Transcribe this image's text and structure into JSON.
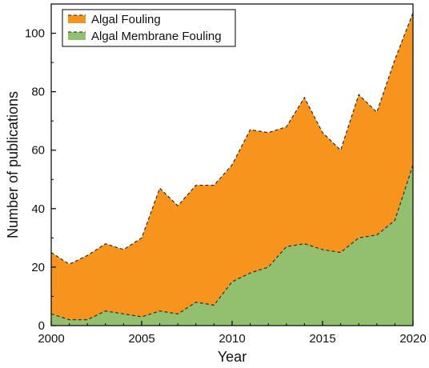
{
  "chart_data": {
    "type": "area",
    "xlabel": "Year",
    "ylabel": "Number of publications",
    "xlim": [
      2000,
      2020
    ],
    "ylim": [
      0,
      110
    ],
    "x_ticks": [
      2000,
      2005,
      2010,
      2015,
      2020
    ],
    "y_ticks": [
      0,
      20,
      40,
      60,
      80,
      100
    ],
    "grid": false,
    "legend_position": "top-left",
    "x": [
      2000,
      2001,
      2002,
      2003,
      2004,
      2005,
      2006,
      2007,
      2008,
      2009,
      2010,
      2011,
      2012,
      2013,
      2014,
      2015,
      2016,
      2017,
      2018,
      2019,
      2020
    ],
    "series": [
      {
        "name": "Algal Fouling",
        "color": "#f7941d",
        "values": [
          25,
          21,
          24,
          28,
          26,
          30,
          47,
          41,
          48,
          48,
          55,
          67,
          66,
          68,
          78,
          66,
          60,
          79,
          73,
          91,
          107
        ]
      },
      {
        "name": "Algal Membrane Fouling",
        "color": "#92c06e",
        "values": [
          4,
          2,
          2,
          5,
          4,
          3,
          5,
          4,
          8,
          7,
          15,
          18,
          20,
          27,
          28,
          26,
          25,
          30,
          31,
          36,
          55
        ]
      }
    ]
  }
}
